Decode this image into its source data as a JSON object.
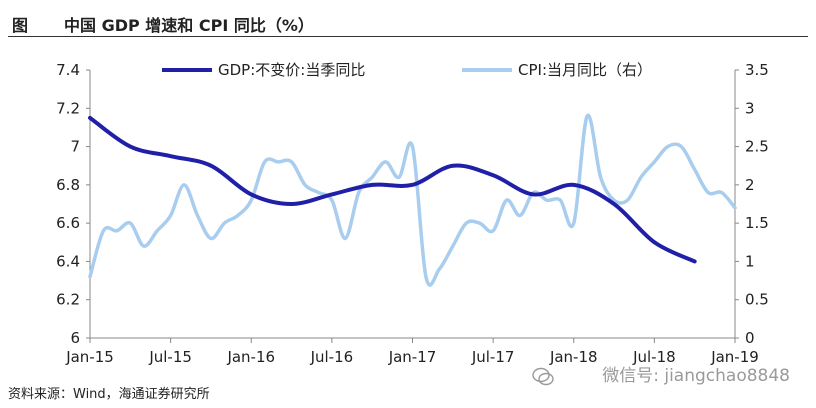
{
  "header": {
    "figure_label": "图",
    "title": "中国 GDP 增速和 CPI 同比（%）"
  },
  "footer": {
    "source": "资料来源：Wind，海通证券研究所",
    "watermark": "微信号: jiangchao8848"
  },
  "colors": {
    "gdp": "#1f1fa8",
    "cpi": "#a9cdee",
    "axis": "#888888"
  },
  "chart_data": {
    "type": "line",
    "x_ticks": [
      "Jan-15",
      "Jul-15",
      "Jan-16",
      "Jul-16",
      "Jan-17",
      "Jul-17",
      "Jan-18",
      "Jul-18",
      "Jan-19"
    ],
    "x_range": [
      0,
      48
    ],
    "y_left": {
      "range": [
        6,
        7.4
      ],
      "ticks": [
        "6",
        "6.2",
        "6.4",
        "6.6",
        "6.8",
        "7",
        "7.2",
        "7.4"
      ]
    },
    "y_right": {
      "range": [
        0,
        3.5
      ],
      "ticks": [
        "0",
        "0.5",
        "1",
        "1.5",
        "2",
        "2.5",
        "3",
        "3.5"
      ]
    },
    "legend_position": "top",
    "grid": false,
    "series": [
      {
        "name": "GDP:不变价:当季同比",
        "axis": "left",
        "x": [
          0,
          3,
          6,
          9,
          12,
          15,
          18,
          21,
          24,
          27,
          30,
          33,
          36,
          39,
          42,
          45
        ],
        "values": [
          7.15,
          7.0,
          6.95,
          6.9,
          6.75,
          6.7,
          6.75,
          6.8,
          6.8,
          6.9,
          6.85,
          6.75,
          6.8,
          6.7,
          6.5,
          6.4
        ]
      },
      {
        "name": "CPI:当月同比（右）",
        "axis": "right",
        "x": [
          0,
          1,
          2,
          3,
          4,
          5,
          6,
          7,
          8,
          9,
          10,
          11,
          12,
          13,
          14,
          15,
          16,
          17,
          18,
          19,
          20,
          21,
          22,
          23,
          24,
          25,
          26,
          27,
          28,
          29,
          30,
          31,
          32,
          33,
          34,
          35,
          36,
          37,
          38,
          39,
          40,
          41,
          42,
          43,
          44,
          45,
          46,
          47,
          48
        ],
        "values": [
          0.8,
          1.4,
          1.4,
          1.5,
          1.2,
          1.4,
          1.6,
          2.0,
          1.6,
          1.3,
          1.5,
          1.6,
          1.8,
          2.3,
          2.3,
          2.3,
          2.0,
          1.9,
          1.8,
          1.3,
          1.9,
          2.1,
          2.3,
          2.1,
          2.5,
          0.8,
          0.9,
          1.2,
          1.5,
          1.5,
          1.4,
          1.8,
          1.6,
          1.9,
          1.8,
          1.8,
          1.5,
          2.9,
          2.1,
          1.8,
          1.8,
          2.1,
          2.3,
          2.5,
          2.5,
          2.2,
          1.9,
          1.9,
          1.7
        ]
      }
    ]
  }
}
